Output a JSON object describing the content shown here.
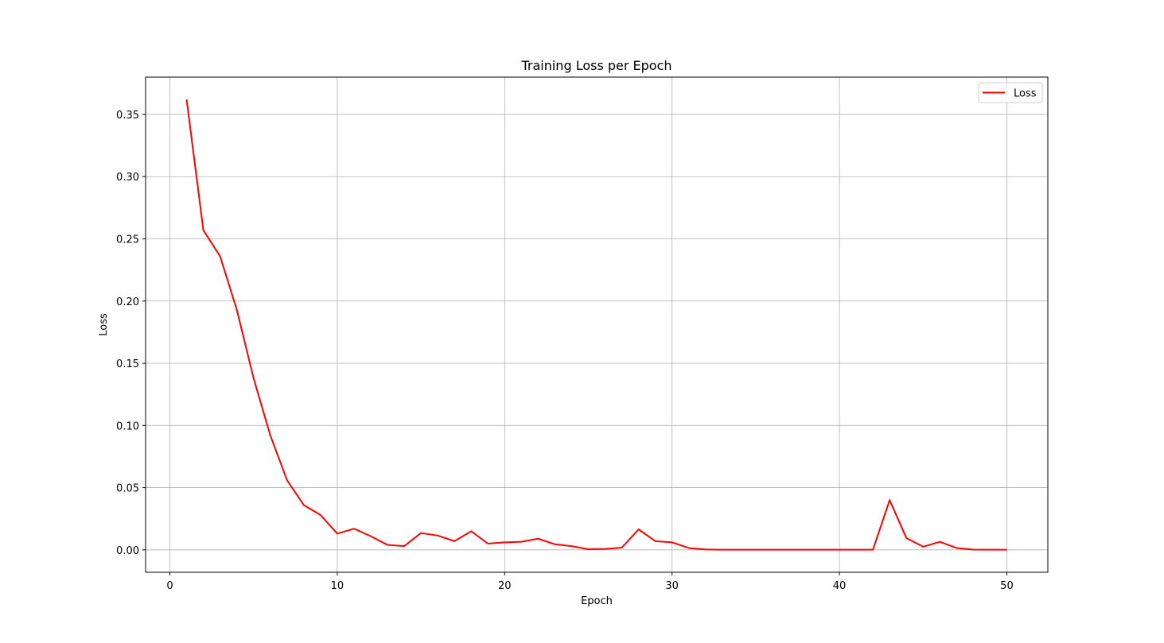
{
  "chart_data": {
    "type": "line",
    "title": "Training Loss per Epoch",
    "xlabel": "Epoch",
    "ylabel": "Loss",
    "xlim": [
      -1.45,
      52.45
    ],
    "ylim": [
      -0.018,
      0.38
    ],
    "xticks": [
      0,
      10,
      20,
      30,
      40,
      50
    ],
    "yticks": [
      0.0,
      0.05,
      0.1,
      0.15,
      0.2,
      0.25,
      0.3,
      0.35
    ],
    "grid": true,
    "legend_position": "top-right",
    "series": [
      {
        "name": "Loss",
        "color": "#ff0000",
        "x": [
          1,
          2,
          3,
          4,
          5,
          6,
          7,
          8,
          9,
          10,
          11,
          12,
          13,
          14,
          15,
          16,
          17,
          18,
          19,
          20,
          21,
          22,
          23,
          24,
          25,
          26,
          27,
          28,
          29,
          30,
          31,
          32,
          33,
          34,
          35,
          36,
          37,
          38,
          39,
          40,
          41,
          42,
          43,
          44,
          45,
          46,
          47,
          48,
          49,
          50
        ],
        "y": [
          0.362,
          0.257,
          0.236,
          0.193,
          0.138,
          0.092,
          0.056,
          0.036,
          0.028,
          0.013,
          0.017,
          0.011,
          0.004,
          0.003,
          0.0135,
          0.0115,
          0.007,
          0.015,
          0.005,
          0.006,
          0.0065,
          0.009,
          0.0045,
          0.003,
          0.0005,
          0.0008,
          0.0018,
          0.0165,
          0.007,
          0.006,
          0.0015,
          0.0003,
          0.0001,
          0.0001,
          0.0001,
          0.0001,
          0.0001,
          0.0001,
          0.0001,
          0.0001,
          0.0001,
          0.0001,
          0.04,
          0.0095,
          0.0025,
          0.0065,
          0.0015,
          0.0002,
          0.0001,
          0.0001
        ]
      }
    ]
  }
}
